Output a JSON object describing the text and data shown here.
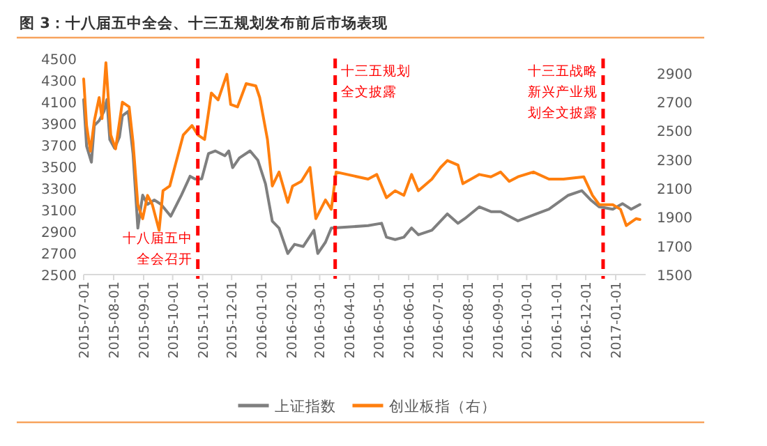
{
  "chart_data": {
    "type": "line",
    "title": "图 3：十八届五中全会、十三五规划发布前后市场表现",
    "series": [
      {
        "name": "上证指数",
        "color": "#7f7f7f",
        "x": [
          "2015-07-01",
          "2015-07-04",
          "2015-07-09",
          "2015-07-12",
          "2015-07-17",
          "2015-07-22",
          "2015-07-25",
          "2015-07-28",
          "2015-08-02",
          "2015-08-07",
          "2015-08-10",
          "2015-08-16",
          "2015-08-21",
          "2015-08-26",
          "2015-08-31",
          "2015-09-05",
          "2015-09-12",
          "2015-09-19",
          "2015-09-29",
          "2015-10-10",
          "2015-10-19",
          "2015-10-24",
          "2015-10-31",
          "2015-11-07",
          "2015-11-14",
          "2015-11-24",
          "2015-11-28",
          "2015-12-02",
          "2015-12-09",
          "2015-12-20",
          "2015-12-28",
          "2016-01-05",
          "2016-01-12",
          "2016-01-19",
          "2016-01-28",
          "2016-02-04",
          "2016-02-13",
          "2016-02-24",
          "2016-02-28",
          "2016-03-07",
          "2016-03-13",
          "2016-04-20",
          "2016-05-04",
          "2016-05-09",
          "2016-05-18",
          "2016-05-27",
          "2016-06-04",
          "2016-06-11",
          "2016-06-25",
          "2016-07-11",
          "2016-07-22",
          "2016-07-29",
          "2016-08-13",
          "2016-08-25",
          "2016-09-04",
          "2016-09-22",
          "2016-10-11",
          "2016-10-24",
          "2016-11-13",
          "2016-11-27",
          "2016-12-06",
          "2016-12-15",
          "2016-12-29",
          "2017-01-08",
          "2017-01-17",
          "2017-01-26"
        ],
        "values": [
          4120,
          3690,
          3540,
          3880,
          3925,
          4010,
          4120,
          3750,
          3670,
          3775,
          3970,
          4010,
          3620,
          2930,
          3235,
          3150,
          3190,
          3150,
          3040,
          3235,
          3410,
          3385,
          3385,
          3620,
          3645,
          3600,
          3645,
          3490,
          3580,
          3645,
          3560,
          3340,
          2995,
          2930,
          2695,
          2780,
          2760,
          2910,
          2695,
          2800,
          2930,
          2953,
          2975,
          2846,
          2824,
          2846,
          2932,
          2868,
          2910,
          3062,
          2975,
          3018,
          3127,
          3083,
          3083,
          2997,
          3062,
          3105,
          3234,
          3277,
          3192,
          3127,
          3105,
          3157,
          3105,
          3148
        ]
      },
      {
        "name": "创业板指（右）",
        "color": "#ff7f0e",
        "axis": "y2",
        "x": [
          "2015-07-01",
          "2015-07-04",
          "2015-07-08",
          "2015-07-12",
          "2015-07-17",
          "2015-07-20",
          "2015-07-24",
          "2015-07-29",
          "2015-08-03",
          "2015-08-10",
          "2015-08-17",
          "2015-08-21",
          "2015-08-26",
          "2015-08-31",
          "2015-09-05",
          "2015-09-10",
          "2015-09-17",
          "2015-09-21",
          "2015-09-28",
          "2015-10-12",
          "2015-10-21",
          "2015-10-27",
          "2015-11-03",
          "2015-11-10",
          "2015-11-17",
          "2015-11-26",
          "2015-11-30",
          "2015-12-07",
          "2015-12-16",
          "2015-12-26",
          "2015-12-30",
          "2016-01-07",
          "2016-01-12",
          "2016-01-19",
          "2016-01-28",
          "2016-02-02",
          "2016-02-11",
          "2016-02-20",
          "2016-02-26",
          "2016-03-07",
          "2016-03-13",
          "2016-03-18",
          "2016-04-20",
          "2016-04-29",
          "2016-05-09",
          "2016-05-18",
          "2016-05-27",
          "2016-06-04",
          "2016-06-11",
          "2016-06-25",
          "2016-07-04",
          "2016-07-11",
          "2016-07-22",
          "2016-07-27",
          "2016-08-13",
          "2016-08-25",
          "2016-09-04",
          "2016-09-13",
          "2016-09-22",
          "2016-10-08",
          "2016-10-24",
          "2016-11-08",
          "2016-11-29",
          "2016-12-08",
          "2016-12-15",
          "2016-12-29",
          "2017-01-06",
          "2017-01-12",
          "2017-01-22",
          "2017-01-26"
        ],
        "values": [
          2858,
          2535,
          2357,
          2567,
          2729,
          2583,
          2971,
          2470,
          2373,
          2697,
          2664,
          2421,
          1985,
          1888,
          2050,
          1985,
          1807,
          2082,
          2115,
          2470,
          2535,
          2470,
          2438,
          2761,
          2713,
          2891,
          2681,
          2664,
          2826,
          2810,
          2729,
          2438,
          2115,
          2212,
          2001,
          2115,
          2147,
          2244,
          1888,
          2018,
          1953,
          2212,
          2163,
          2195,
          2034,
          2082,
          2050,
          2195,
          2082,
          2163,
          2244,
          2292,
          2260,
          2131,
          2195,
          2179,
          2212,
          2147,
          2179,
          2212,
          2163,
          2163,
          2179,
          2050,
          1985,
          1985,
          1953,
          1840,
          1888,
          1882
        ]
      }
    ],
    "xlim": [
      "2015-07-01",
      "2017-02-01"
    ],
    "xticks": [
      "2015-07-01",
      "2015-08-01",
      "2015-09-01",
      "2015-10-01",
      "2015-11-01",
      "2015-12-01",
      "2016-01-01",
      "2016-02-01",
      "2016-03-01",
      "2016-04-01",
      "2016-05-01",
      "2016-06-01",
      "2016-07-01",
      "2016-08-01",
      "2016-09-01",
      "2016-10-01",
      "2016-11-01",
      "2016-12-01",
      "2017-01-01"
    ],
    "ylim": [
      2500,
      4500
    ],
    "yticks": [
      2500,
      2700,
      2900,
      3100,
      3300,
      3500,
      3700,
      3900,
      4100,
      4300,
      4500
    ],
    "y2lim": [
      1500,
      3000
    ],
    "y2ticks": [
      1500,
      1700,
      1900,
      2100,
      2300,
      2500,
      2700,
      2900
    ],
    "ref_lines": [
      {
        "axis": "x",
        "value": "2015-10-27",
        "label": "十八届五中全会召开",
        "color": "#ff0000",
        "line_style": "dashed"
      },
      {
        "axis": "x",
        "value": "2016-03-17",
        "label": "十三五规划全文披露",
        "color": "#ff0000",
        "line_style": "dashed"
      },
      {
        "axis": "x",
        "value": "2016-12-19",
        "label": "十三五战略新兴产业规划全文披露",
        "color": "#ff0000",
        "line_style": "dashed"
      }
    ],
    "grid": false,
    "legend": "bottom",
    "marker": "none",
    "line_style": "solid"
  }
}
